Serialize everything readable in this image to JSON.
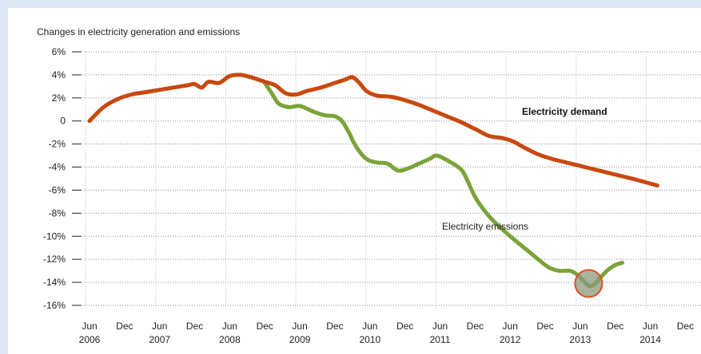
{
  "chart_data": {
    "type": "line",
    "title": "Changes in electricity generation and emissions",
    "ylim": [
      -16,
      6
    ],
    "y_ticks": [
      {
        "v": 6,
        "label": "6%"
      },
      {
        "v": 4,
        "label": "4%"
      },
      {
        "v": 2,
        "label": "2%"
      },
      {
        "v": 0,
        "label": "0"
      },
      {
        "v": -2,
        "label": "-2%"
      },
      {
        "v": -4,
        "label": "-4%"
      },
      {
        "v": -6,
        "label": "-6%"
      },
      {
        "v": -8,
        "label": "-8%"
      },
      {
        "v": -10,
        "label": "-10%"
      },
      {
        "v": -12,
        "label": "-12%"
      },
      {
        "v": -14,
        "label": "-14%"
      },
      {
        "v": -16,
        "label": "-16%"
      }
    ],
    "xlim": [
      2006.45,
      2014.6
    ],
    "x_ticks": [
      {
        "x": 2006.5,
        "label": "Jun",
        "year": "2006"
      },
      {
        "x": 2007.0,
        "label": "Dec",
        "year": ""
      },
      {
        "x": 2007.5,
        "label": "Jun",
        "year": "2007"
      },
      {
        "x": 2008.0,
        "label": "Dec",
        "year": ""
      },
      {
        "x": 2008.5,
        "label": "Jun",
        "year": "2008"
      },
      {
        "x": 2009.0,
        "label": "Dec",
        "year": ""
      },
      {
        "x": 2009.5,
        "label": "Jun",
        "year": "2009"
      },
      {
        "x": 2010.0,
        "label": "Dec",
        "year": ""
      },
      {
        "x": 2010.5,
        "label": "Jun",
        "year": "2010"
      },
      {
        "x": 2011.0,
        "label": "Dec",
        "year": ""
      },
      {
        "x": 2011.5,
        "label": "Jun",
        "year": "2011"
      },
      {
        "x": 2012.0,
        "label": "Dec",
        "year": ""
      },
      {
        "x": 2012.5,
        "label": "Jun",
        "year": "2012"
      },
      {
        "x": 2013.0,
        "label": "Dec",
        "year": ""
      },
      {
        "x": 2013.5,
        "label": "Jun",
        "year": "2013"
      },
      {
        "x": 2014.0,
        "label": "Dec",
        "year": ""
      },
      {
        "x": 2014.5,
        "label": "Jun",
        "year": "2014"
      },
      {
        "x": 2015.0,
        "label": "Dec",
        "year": ""
      }
    ],
    "grid": true,
    "series": [
      {
        "name": "Electricity demand",
        "color": "#c8490f",
        "points": [
          [
            2006.5,
            0.0
          ],
          [
            2006.7,
            1.2
          ],
          [
            2006.9,
            1.9
          ],
          [
            2007.1,
            2.3
          ],
          [
            2007.3,
            2.5
          ],
          [
            2007.5,
            2.7
          ],
          [
            2007.7,
            2.9
          ],
          [
            2007.9,
            3.1
          ],
          [
            2008.0,
            3.2
          ],
          [
            2008.1,
            2.9
          ],
          [
            2008.2,
            3.4
          ],
          [
            2008.35,
            3.3
          ],
          [
            2008.5,
            3.9
          ],
          [
            2008.65,
            4.0
          ],
          [
            2008.8,
            3.8
          ],
          [
            2009.0,
            3.4
          ],
          [
            2009.15,
            3.1
          ],
          [
            2009.3,
            2.4
          ],
          [
            2009.45,
            2.3
          ],
          [
            2009.6,
            2.6
          ],
          [
            2009.8,
            2.9
          ],
          [
            2010.0,
            3.3
          ],
          [
            2010.15,
            3.6
          ],
          [
            2010.25,
            3.8
          ],
          [
            2010.35,
            3.3
          ],
          [
            2010.45,
            2.6
          ],
          [
            2010.6,
            2.2
          ],
          [
            2010.8,
            2.1
          ],
          [
            2011.0,
            1.8
          ],
          [
            2011.2,
            1.4
          ],
          [
            2011.4,
            0.9
          ],
          [
            2011.6,
            0.4
          ],
          [
            2011.8,
            -0.1
          ],
          [
            2012.0,
            -0.7
          ],
          [
            2012.2,
            -1.3
          ],
          [
            2012.4,
            -1.5
          ],
          [
            2012.55,
            -1.8
          ],
          [
            2012.7,
            -2.3
          ],
          [
            2012.9,
            -2.9
          ],
          [
            2013.1,
            -3.3
          ],
          [
            2013.3,
            -3.6
          ],
          [
            2013.5,
            -3.9
          ],
          [
            2013.7,
            -4.2
          ],
          [
            2013.9,
            -4.5
          ],
          [
            2014.1,
            -4.8
          ],
          [
            2014.3,
            -5.1
          ],
          [
            2014.6,
            -5.6
          ]
        ]
      },
      {
        "name": "Electricity emissions",
        "color": "#7ba33a",
        "points": [
          [
            2009.0,
            3.3
          ],
          [
            2009.1,
            2.4
          ],
          [
            2009.2,
            1.5
          ],
          [
            2009.35,
            1.2
          ],
          [
            2009.5,
            1.3
          ],
          [
            2009.7,
            0.8
          ],
          [
            2009.85,
            0.5
          ],
          [
            2010.0,
            0.4
          ],
          [
            2010.1,
            0.0
          ],
          [
            2010.2,
            -1.0
          ],
          [
            2010.3,
            -2.2
          ],
          [
            2010.45,
            -3.3
          ],
          [
            2010.6,
            -3.6
          ],
          [
            2010.75,
            -3.7
          ],
          [
            2010.9,
            -4.3
          ],
          [
            2011.05,
            -4.1
          ],
          [
            2011.2,
            -3.7
          ],
          [
            2011.35,
            -3.3
          ],
          [
            2011.45,
            -3.0
          ],
          [
            2011.6,
            -3.4
          ],
          [
            2011.8,
            -4.2
          ],
          [
            2011.9,
            -5.3
          ],
          [
            2012.0,
            -6.6
          ],
          [
            2012.15,
            -7.9
          ],
          [
            2012.3,
            -8.9
          ],
          [
            2012.5,
            -10.0
          ],
          [
            2012.7,
            -11.0
          ],
          [
            2012.9,
            -12.0
          ],
          [
            2013.05,
            -12.7
          ],
          [
            2013.2,
            -13.0
          ],
          [
            2013.35,
            -13.0
          ],
          [
            2013.45,
            -13.3
          ],
          [
            2013.55,
            -13.9
          ],
          [
            2013.62,
            -14.3
          ],
          [
            2013.7,
            -14.2
          ],
          [
            2013.8,
            -13.5
          ],
          [
            2013.9,
            -12.9
          ],
          [
            2014.0,
            -12.5
          ],
          [
            2014.1,
            -12.3
          ]
        ]
      }
    ],
    "annotations": [
      {
        "text": "Electricity demand",
        "series": "Electricity demand"
      },
      {
        "text": "Electricity emissions",
        "series": "Electricity emissions"
      }
    ],
    "highlight": {
      "x": 2013.62,
      "y": -14.1,
      "stroke": "#e04a2a",
      "fill": "#8a9a7a"
    }
  }
}
